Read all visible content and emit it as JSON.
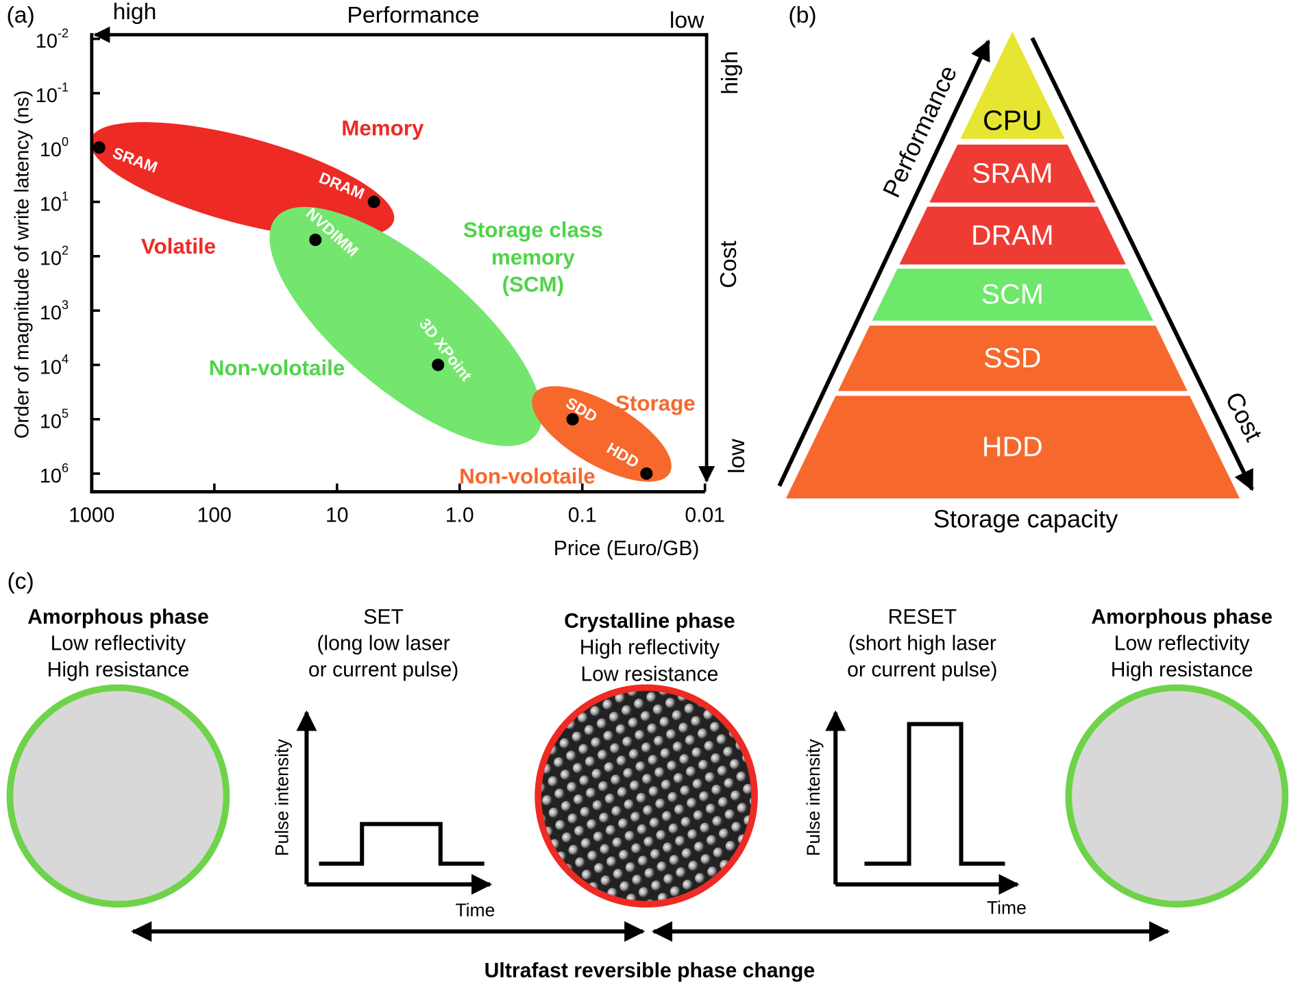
{
  "panel_labels": [
    "(a)",
    "(b)",
    "(c)"
  ],
  "chart_data": {
    "type": "scatter",
    "x_label": "Price (Euro/GB)",
    "y_label": "Order of magnitude of write latency (ns)",
    "x_log": true,
    "y_log": true,
    "x_inverted": true,
    "y_inverted": true,
    "xlim": [
      0.01,
      1000
    ],
    "ylim": [
      0.01,
      1000000
    ],
    "xticks": [
      1000,
      100,
      10,
      {
        "value": 1,
        "label": "1.0"
      },
      0.1,
      0.01
    ],
    "yticks": [
      {
        "value": 0.01,
        "label": "10",
        "exponent": "-2"
      },
      {
        "value": 0.1,
        "label": "10",
        "exponent": "-1"
      },
      {
        "value": 1,
        "label": "10",
        "exponent": "0"
      },
      {
        "value": 10,
        "label": "10",
        "exponent": "1"
      },
      {
        "value": 100,
        "label": "10",
        "exponent": "2"
      },
      {
        "value": 1000,
        "label": "10",
        "exponent": "3"
      },
      {
        "value": 10000,
        "label": "10",
        "exponent": "4"
      },
      {
        "value": 100000,
        "label": "10",
        "exponent": "5"
      },
      {
        "value": 1000000,
        "label": "10",
        "exponent": "6"
      }
    ],
    "categories": [
      "SRAM",
      "DRAM",
      "NVDIMM",
      "3D XPoint",
      "SDD",
      "HDD"
    ],
    "x": [
      870,
      5,
      15,
      1.5,
      0.12,
      0.03
    ],
    "values": [
      1,
      10,
      50,
      10000,
      100000,
      1000000
    ],
    "color": "#000000",
    "annotations": [
      {
        "lines": [
          "Memory"
        ],
        "color": "#ee2a24"
      },
      {
        "lines": [
          "Volatile"
        ],
        "color": "#ee2a24"
      },
      {
        "lines": [
          "Storage class",
          "memory",
          "(SCM)"
        ],
        "color": "#4fd44a"
      },
      {
        "lines": [
          "Non-volotaile"
        ],
        "color": "#4fd44a"
      },
      {
        "lines": [
          "Storage"
        ],
        "color": "#f7682c"
      },
      {
        "lines": [
          "Non-volotaile"
        ],
        "color": "#f7682c"
      }
    ],
    "performance_axis": {
      "title": "Performance",
      "start": "high",
      "end": "low"
    },
    "cost_axis": {
      "title": "Cost",
      "start": "high",
      "end": "low"
    }
  },
  "pyramid": {
    "tiers": [
      {
        "label": "CPU",
        "color": "#e6e632"
      },
      {
        "label": "SRAM",
        "color": "#ee3b33"
      },
      {
        "label": "DRAM",
        "color": "#ee3b33"
      },
      {
        "label": "SCM",
        "color": "#6ee86a"
      },
      {
        "label": "SSD",
        "color": "#f7682c"
      },
      {
        "label": "HDD",
        "color": "#f7682c"
      }
    ],
    "left_arrow": "Performance",
    "right_arrow": "Cost",
    "base": "Storage capacity"
  },
  "phase_change": {
    "stages": [
      {
        "title": "Amorphous phase",
        "lines": [
          "Low reflectivity",
          "High resistance"
        ]
      },
      {
        "title": "Crystalline phase",
        "lines": [
          "High reflectivity",
          "Low resistance"
        ]
      },
      {
        "title": "Amorphous phase",
        "lines": [
          "Low reflectivity",
          "High resistance"
        ]
      }
    ],
    "pulses": [
      {
        "title": "SET",
        "lines": [
          "(long low laser",
          "or current pulse)"
        ],
        "y_label": "Pulse intensity",
        "x_label": "Time"
      },
      {
        "title": "RESET",
        "lines": [
          "(short high laser",
          "or current pulse)"
        ],
        "y_label": "Pulse intensity",
        "x_label": "Time"
      }
    ],
    "caption": "Ultrafast reversible phase change"
  }
}
